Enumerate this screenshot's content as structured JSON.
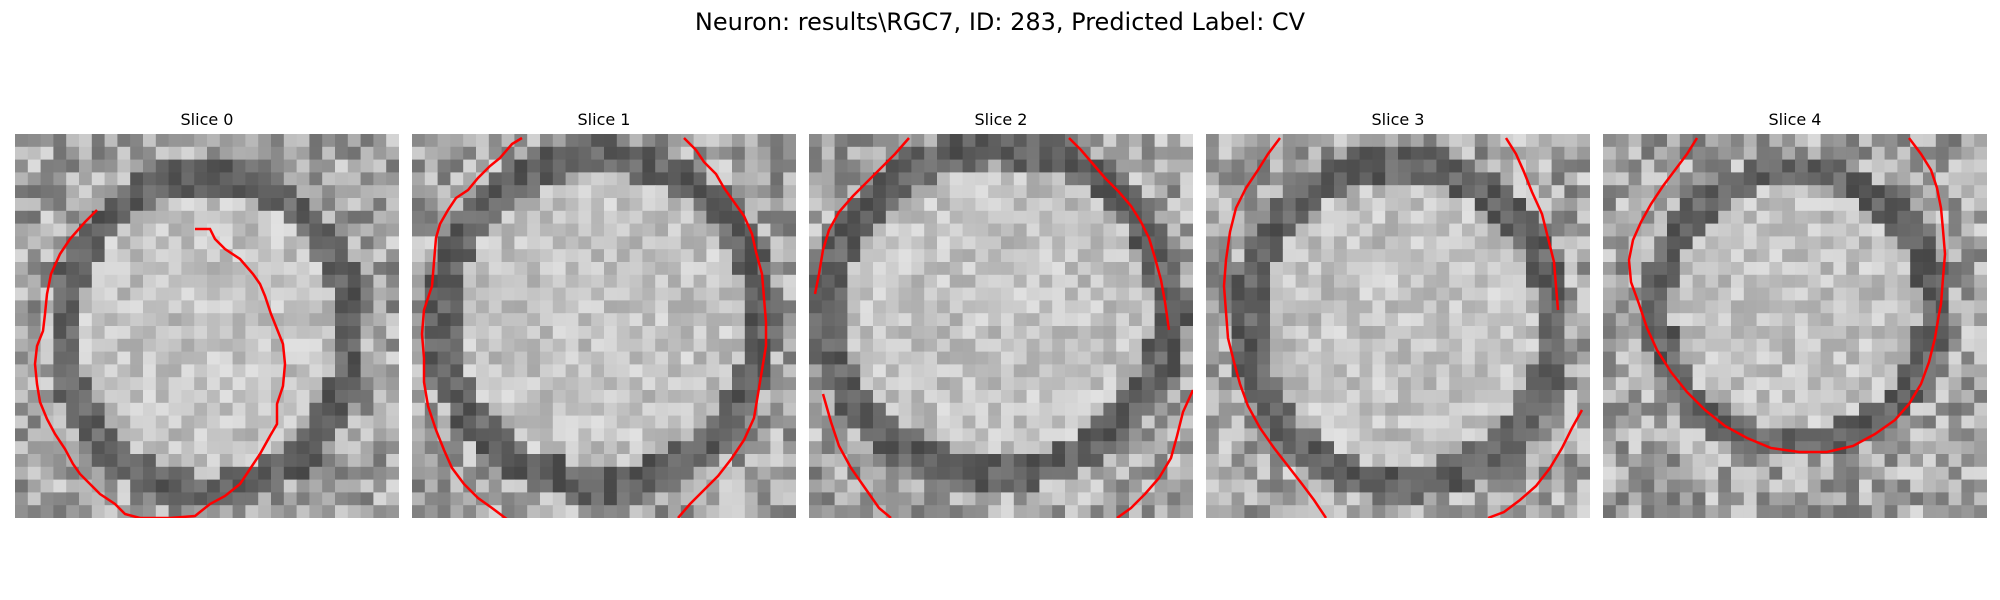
{
  "figure": {
    "title": "Neuron: results\\RGC7, ID: 283, Predicted Label: CV"
  },
  "panels": [
    {
      "title": "Slice 0"
    },
    {
      "title": "Slice 1"
    },
    {
      "title": "Slice 2"
    },
    {
      "title": "Slice 3"
    },
    {
      "title": "Slice 4"
    }
  ],
  "colors": {
    "contour": "#ff0000",
    "background": "#ffffff"
  }
}
